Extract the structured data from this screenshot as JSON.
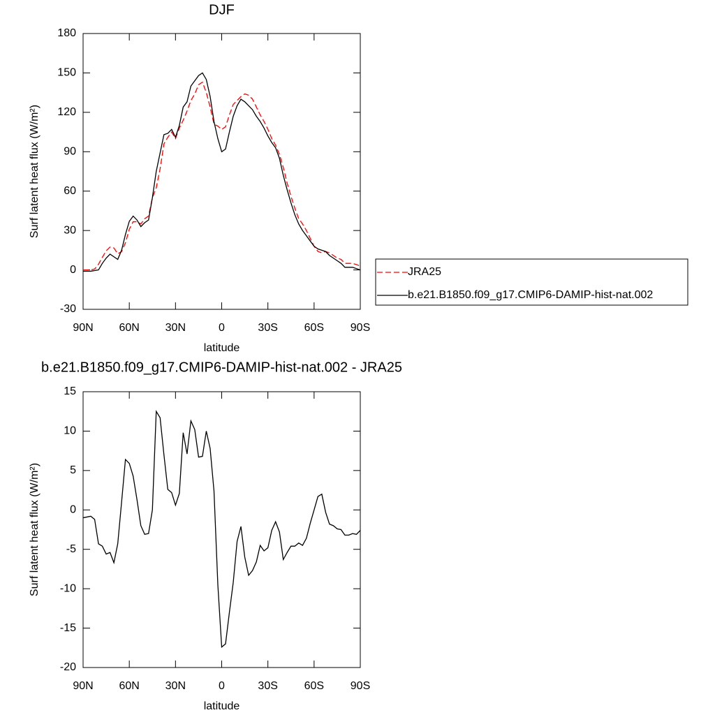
{
  "chart_data": [
    {
      "type": "line",
      "title": "DJF",
      "xlabel": "latitude",
      "ylabel": "Surf latent heat flux (W/m²)",
      "x": [
        90,
        87.5,
        85,
        82.5,
        80,
        77.5,
        75,
        72.5,
        70,
        67.5,
        65,
        62.5,
        60,
        57.5,
        55,
        52.5,
        50,
        47.5,
        45,
        42.5,
        40,
        37.5,
        35,
        32.5,
        30,
        27.5,
        25,
        22.5,
        20,
        17.5,
        15,
        12.5,
        10,
        7.5,
        5,
        2.5,
        0,
        -2.5,
        -5,
        -7.5,
        -10,
        -12.5,
        -15,
        -17.5,
        -20,
        -22.5,
        -25,
        -27.5,
        -30,
        -32.5,
        -35,
        -37.5,
        -40,
        -42.5,
        -45,
        -47.5,
        -50,
        -52.5,
        -55,
        -57.5,
        -60,
        -62.5,
        -65,
        -67.5,
        -70,
        -72.5,
        -75,
        -77.5,
        -80,
        -82.5,
        -85,
        -87.5,
        -90
      ],
      "series": [
        {
          "name": "JRA25",
          "color": "#ff0000",
          "dash": "dashed",
          "values": [
            0,
            0,
            0,
            0.7,
            4.3,
            9.6,
            14.6,
            17.4,
            16.7,
            12.3,
            14,
            20.6,
            31,
            36.7,
            36.7,
            35,
            39,
            41,
            55,
            62.5,
            77,
            96,
            101,
            105,
            100,
            108,
            114,
            121,
            129,
            134,
            141,
            143,
            135,
            124,
            111,
            109.5,
            107,
            109,
            118,
            126,
            129,
            132,
            134,
            133,
            130,
            124,
            118,
            113,
            107,
            100,
            95,
            88,
            78,
            66,
            56,
            47,
            39,
            35,
            30,
            24,
            18,
            14,
            13,
            14,
            13,
            11,
            9,
            8,
            5,
            5,
            5,
            4,
            3
          ]
        },
        {
          "name": "b.e21.B1850.f09_g17.CMIP6-DAMIP-hist-nat.002",
          "color": "#000000",
          "dash": "solid",
          "values": [
            -1,
            -1,
            -1,
            -0.5,
            0,
            5,
            9,
            12,
            10,
            8,
            15,
            27,
            37,
            41,
            38,
            33,
            36,
            38,
            55,
            75,
            89,
            103,
            104,
            107,
            101,
            110,
            124,
            128,
            140,
            144,
            148,
            150,
            145,
            132,
            113,
            100,
            90,
            92,
            105,
            117,
            125,
            130,
            128,
            125,
            122,
            117,
            113,
            108,
            102,
            97,
            93,
            85,
            72,
            61,
            51,
            42,
            35,
            30,
            26,
            22,
            18,
            16,
            15,
            14,
            11,
            9,
            7,
            5,
            2,
            2,
            2,
            1,
            0
          ]
        }
      ],
      "xlim": [
        90,
        -90
      ],
      "xticks": [
        {
          "value": 90,
          "label": "90N"
        },
        {
          "value": 60,
          "label": "60N"
        },
        {
          "value": 30,
          "label": "30N"
        },
        0,
        {
          "value": -30,
          "label": "30S"
        },
        {
          "value": -60,
          "label": "60S"
        },
        {
          "value": -90,
          "label": "90S"
        }
      ],
      "ylim": [
        -30,
        180
      ],
      "yticks": [
        -30,
        0,
        30,
        60,
        90,
        120,
        150,
        180
      ],
      "legend": "right"
    },
    {
      "type": "line",
      "title": "b.e21.B1850.f09_g17.CMIP6-DAMIP-hist-nat.002 - JRA25",
      "xlabel": "latitude",
      "ylabel": "Surf latent heat flux (W/m²)",
      "x": [
        90,
        87.5,
        85,
        82.5,
        80,
        77.5,
        75,
        72.5,
        70,
        67.5,
        65,
        62.5,
        60,
        57.5,
        55,
        52.5,
        50,
        47.5,
        45,
        42.5,
        40,
        37.5,
        35,
        32.5,
        30,
        27.5,
        25,
        22.5,
        20,
        17.5,
        15,
        12.5,
        10,
        7.5,
        5,
        2.5,
        0,
        -2.5,
        -5,
        -7.5,
        -10,
        -12.5,
        -15,
        -17.5,
        -20,
        -22.5,
        -25,
        -27.5,
        -30,
        -32.5,
        -35,
        -37.5,
        -40,
        -42.5,
        -45,
        -47.5,
        -50,
        -52.5,
        -55,
        -57.5,
        -60,
        -62.5,
        -65,
        -67.5,
        -70,
        -72.5,
        -75,
        -77.5,
        -80,
        -82.5,
        -85,
        -87.5,
        -90
      ],
      "series": [
        {
          "color": "#000000",
          "dash": "solid",
          "values": [
            -1,
            -0.9,
            -0.8,
            -1.2,
            -4.3,
            -4.6,
            -5.6,
            -5.4,
            -6.7,
            -4.3,
            1,
            6.4,
            5.9,
            4.3,
            1.3,
            -2,
            -3.1,
            -3,
            0,
            12.5,
            11.7,
            7,
            2.6,
            2.2,
            0.6,
            2.1,
            9.8,
            7.1,
            11.3,
            10.2,
            6.7,
            6.8,
            10,
            7.8,
            2.4,
            -9.5,
            -17.4,
            -17,
            -13,
            -9.2,
            -4,
            -2.1,
            -6,
            -8.3,
            -7.7,
            -6.6,
            -4.5,
            -5.2,
            -4.8,
            -2.6,
            -1.5,
            -2.8,
            -6.3,
            -5.4,
            -4.6,
            -4.6,
            -4.2,
            -4.5,
            -3.6,
            -1.7,
            0,
            1.7,
            2,
            -0.3,
            -1.8,
            -2,
            -2.4,
            -2.5,
            -3.2,
            -3.2,
            -3,
            -3.1,
            -2.6
          ]
        }
      ],
      "xlim": [
        90,
        -90
      ],
      "xticks": [
        {
          "value": 90,
          "label": "90N"
        },
        {
          "value": 60,
          "label": "60N"
        },
        {
          "value": 30,
          "label": "30N"
        },
        0,
        {
          "value": -30,
          "label": "30S"
        },
        {
          "value": -60,
          "label": "60S"
        },
        {
          "value": -90,
          "label": "90S"
        }
      ],
      "ylim": [
        -20,
        15
      ],
      "yticks": [
        -20,
        -15,
        -10,
        -5,
        0,
        5,
        10,
        15
      ]
    }
  ]
}
